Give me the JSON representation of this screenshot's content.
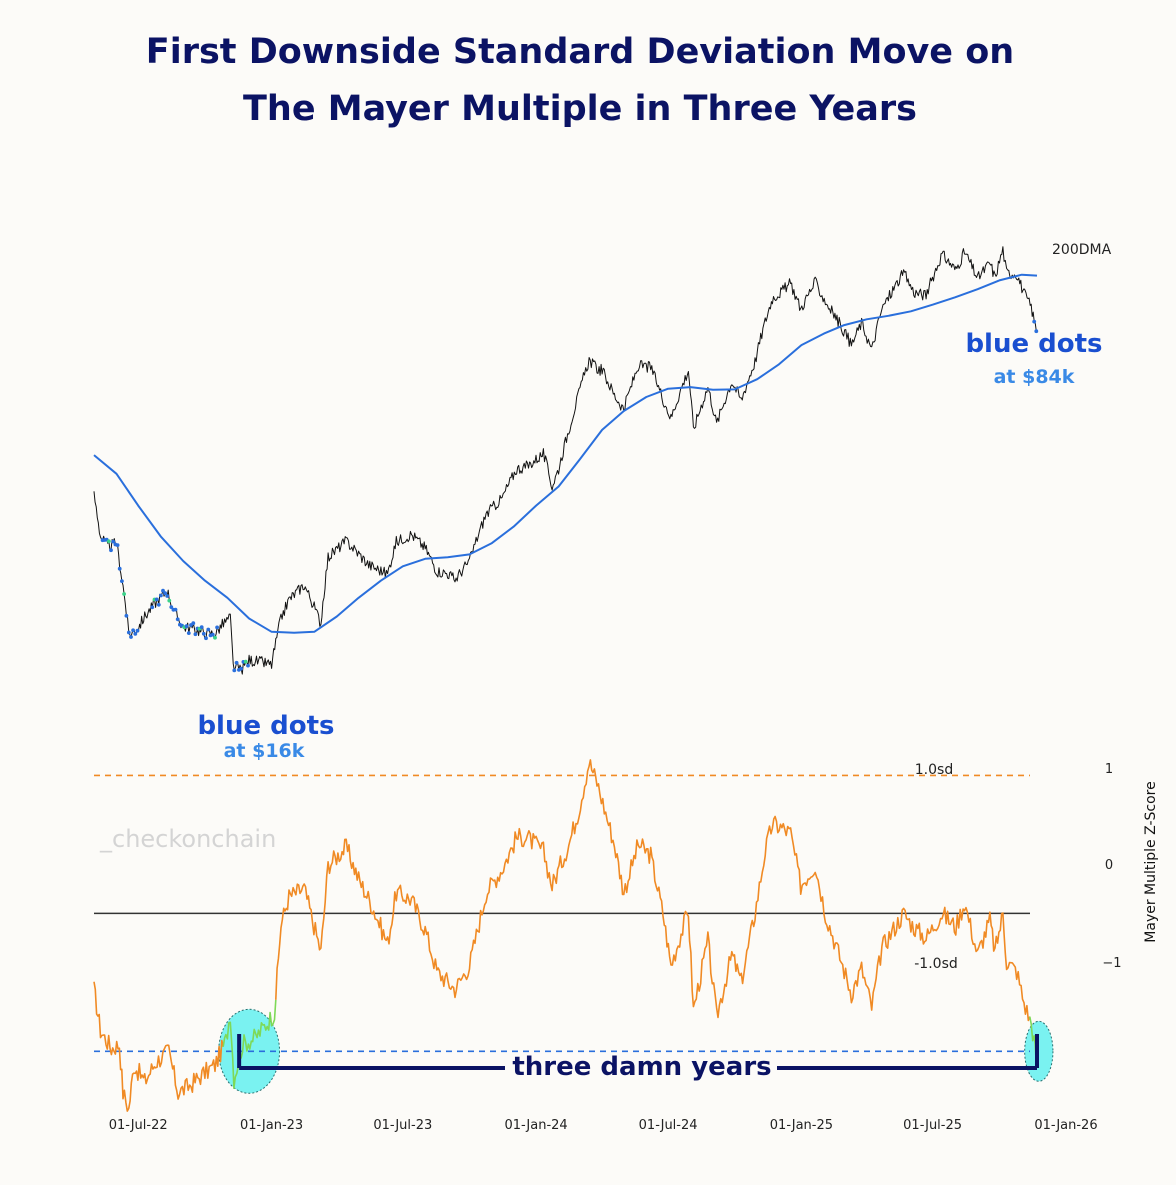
{
  "chart_data": {
    "type": "line",
    "title": [
      "First Downside Standard Deviation Move on",
      "The Mayer Multiple in Three Years"
    ],
    "x_range": [
      "2022-05-01",
      "2025-11-22"
    ],
    "x_ticks": [
      "01-Jul-22",
      "01-Jan-23",
      "01-Jul-23",
      "01-Jan-24",
      "01-Jul-24",
      "01-Jan-25",
      "01-Jul-25",
      "01-Jan-26"
    ],
    "x_tick_dates": [
      "2022-07-01",
      "2023-01-01",
      "2023-07-01",
      "2024-01-01",
      "2024-07-01",
      "2025-01-01",
      "2025-07-01",
      "2026-01-01"
    ],
    "price_panel": {
      "scale": "log",
      "ylim": [
        14000,
        140000
      ],
      "series": [
        {
          "name": "price",
          "color": "#111111",
          "points": [
            [
              "2022-05-01",
              38000
            ],
            [
              "2022-05-10",
              31000
            ],
            [
              "2022-05-20",
              29500
            ],
            [
              "2022-06-01",
              30000
            ],
            [
              "2022-06-13",
              22500
            ],
            [
              "2022-06-18",
              19200
            ],
            [
              "2022-06-30",
              19800
            ],
            [
              "2022-07-10",
              21000
            ],
            [
              "2022-07-25",
              22500
            ],
            [
              "2022-08-10",
              23800
            ],
            [
              "2022-08-20",
              21400
            ],
            [
              "2022-09-01",
              20000
            ],
            [
              "2022-09-15",
              19800
            ],
            [
              "2022-10-01",
              19400
            ],
            [
              "2022-10-15",
              19300
            ],
            [
              "2022-10-25",
              20200
            ],
            [
              "2022-11-05",
              20900
            ],
            [
              "2022-11-09",
              16500
            ],
            [
              "2022-11-20",
              16200
            ],
            [
              "2022-12-01",
              17000
            ],
            [
              "2022-12-20",
              16800
            ],
            [
              "2023-01-01",
              16600
            ],
            [
              "2023-01-14",
              20800
            ],
            [
              "2023-01-25",
              22800
            ],
            [
              "2023-02-15",
              24500
            ],
            [
              "2023-03-10",
              20300
            ],
            [
              "2023-03-20",
              28000
            ],
            [
              "2023-04-14",
              30300
            ],
            [
              "2023-05-01",
              28500
            ],
            [
              "2023-05-15",
              27000
            ],
            [
              "2023-06-10",
              25800
            ],
            [
              "2023-06-22",
              30200
            ],
            [
              "2023-07-13",
              31300
            ],
            [
              "2023-08-01",
              29300
            ],
            [
              "2023-08-17",
              26200
            ],
            [
              "2023-09-01",
              25900
            ],
            [
              "2023-09-11",
              25100
            ],
            [
              "2023-10-01",
              27500
            ],
            [
              "2023-10-24",
              34500
            ],
            [
              "2023-11-15",
              37300
            ],
            [
              "2023-12-05",
              43000
            ],
            [
              "2023-12-20",
              43600
            ],
            [
              "2024-01-11",
              46300
            ],
            [
              "2024-01-23",
              39500
            ],
            [
              "2024-02-01",
              43000
            ],
            [
              "2024-02-15",
              52000
            ],
            [
              "2024-02-29",
              62000
            ],
            [
              "2024-03-14",
              73000
            ],
            [
              "2024-03-25",
              70000
            ],
            [
              "2024-04-01",
              69500
            ],
            [
              "2024-04-18",
              61500
            ],
            [
              "2024-05-01",
              57500
            ],
            [
              "2024-05-21",
              71000
            ],
            [
              "2024-06-07",
              70500
            ],
            [
              "2024-06-24",
              60500
            ],
            [
              "2024-07-05",
              55000
            ],
            [
              "2024-07-29",
              69500
            ],
            [
              "2024-08-05",
              52000
            ],
            [
              "2024-08-25",
              64000
            ],
            [
              "2024-09-06",
              53500
            ],
            [
              "2024-09-27",
              65800
            ],
            [
              "2024-10-10",
              60000
            ],
            [
              "2024-10-29",
              72500
            ],
            [
              "2024-11-12",
              88000
            ],
            [
              "2024-11-22",
              98500
            ],
            [
              "2024-12-05",
              102000
            ],
            [
              "2024-12-17",
              106000
            ],
            [
              "2024-12-31",
              93500
            ],
            [
              "2025-01-20",
              106500
            ],
            [
              "2025-02-03",
              97000
            ],
            [
              "2025-02-25",
              86000
            ],
            [
              "2025-03-11",
              78500
            ],
            [
              "2025-03-25",
              87500
            ],
            [
              "2025-04-08",
              76500
            ],
            [
              "2025-04-22",
              93500
            ],
            [
              "2025-05-22",
              111500
            ],
            [
              "2025-06-05",
              101500
            ],
            [
              "2025-06-22",
              100000
            ],
            [
              "2025-07-14",
              122000
            ],
            [
              "2025-08-02",
              113000
            ],
            [
              "2025-08-14",
              123500
            ],
            [
              "2025-09-01",
              108500
            ],
            [
              "2025-09-18",
              117000
            ],
            [
              "2025-09-25",
              109000
            ],
            [
              "2025-10-06",
              125000
            ],
            [
              "2025-10-11",
              111500
            ],
            [
              "2025-10-25",
              111000
            ],
            [
              "2025-11-04",
              101000
            ],
            [
              "2025-11-14",
              94500
            ],
            [
              "2025-11-21",
              84000
            ]
          ]
        },
        {
          "name": "200DMA",
          "color": "#2a6fdc",
          "points": [
            [
              "2022-05-01",
              46000
            ],
            [
              "2022-06-01",
              42000
            ],
            [
              "2022-07-01",
              36000
            ],
            [
              "2022-08-01",
              31000
            ],
            [
              "2022-09-01",
              27500
            ],
            [
              "2022-10-01",
              25000
            ],
            [
              "2022-11-01",
              23000
            ],
            [
              "2022-12-01",
              20800
            ],
            [
              "2023-01-01",
              19500
            ],
            [
              "2023-02-01",
              19400
            ],
            [
              "2023-03-01",
              19500
            ],
            [
              "2023-04-01",
              21000
            ],
            [
              "2023-05-01",
              23000
            ],
            [
              "2023-06-01",
              25000
            ],
            [
              "2023-07-01",
              26800
            ],
            [
              "2023-08-01",
              27800
            ],
            [
              "2023-09-01",
              28000
            ],
            [
              "2023-10-01",
              28400
            ],
            [
              "2023-11-01",
              30000
            ],
            [
              "2023-12-01",
              32500
            ],
            [
              "2024-01-01",
              36000
            ],
            [
              "2024-02-01",
              39500
            ],
            [
              "2024-03-01",
              45000
            ],
            [
              "2024-04-01",
              52000
            ],
            [
              "2024-05-01",
              57000
            ],
            [
              "2024-06-01",
              61000
            ],
            [
              "2024-07-01",
              63500
            ],
            [
              "2024-08-01",
              64000
            ],
            [
              "2024-09-01",
              63200
            ],
            [
              "2024-10-01",
              63300
            ],
            [
              "2024-11-01",
              66500
            ],
            [
              "2024-12-01",
              71500
            ],
            [
              "2025-01-01",
              78500
            ],
            [
              "2025-02-01",
              83000
            ],
            [
              "2025-03-01",
              86500
            ],
            [
              "2025-04-01",
              89000
            ],
            [
              "2025-05-01",
              90500
            ],
            [
              "2025-06-01",
              92500
            ],
            [
              "2025-07-01",
              95500
            ],
            [
              "2025-08-01",
              99000
            ],
            [
              "2025-09-01",
              103000
            ],
            [
              "2025-10-01",
              107500
            ],
            [
              "2025-11-01",
              110500
            ],
            [
              "2025-11-22",
              110000
            ]
          ]
        }
      ],
      "series_label": "200DMA",
      "blue_dot_spans": [
        [
          "2022-05-12",
          "2022-06-30"
        ],
        [
          "2022-07-20",
          "2022-10-20"
        ],
        [
          "2022-11-10",
          "2022-11-30"
        ],
        [
          "2025-11-18",
          "2025-11-22"
        ]
      ],
      "annotations": [
        {
          "text": "blue dots",
          "sub": "at $16k"
        },
        {
          "text": "blue dots",
          "sub": "at $84k"
        }
      ]
    },
    "zscore_panel": {
      "ylabel": "Mayer Multiple Z-Score",
      "ylim": [
        -1.23,
        1.17
      ],
      "y_ticks": [
        "1",
        "0",
        "−1"
      ],
      "y_tick_values": [
        1,
        0,
        -1
      ],
      "lines": [
        {
          "label": "1.0sd",
          "value": 1.0,
          "color": "#f08a24",
          "style": "dashed"
        },
        {
          "label": "",
          "value": 0.0,
          "color": "#333333",
          "style": "solid"
        },
        {
          "label": "-1.0sd",
          "value": -1.0,
          "color": "#2a6fdc",
          "style": "dashed"
        }
      ],
      "series": {
        "name": "Mayer Multiple Z-Score",
        "color": "#f08a24",
        "low_color": "#7ed957",
        "points": [
          [
            "2022-05-01",
            -0.55
          ],
          [
            "2022-05-10",
            -0.85
          ],
          [
            "2022-05-25",
            -0.98
          ],
          [
            "2022-06-05",
            -0.95
          ],
          [
            "2022-06-10",
            -1.3
          ],
          [
            "2022-06-18",
            -1.42
          ],
          [
            "2022-06-25",
            -1.1
          ],
          [
            "2022-07-10",
            -1.22
          ],
          [
            "2022-07-25",
            -1.08
          ],
          [
            "2022-08-12",
            -1.0
          ],
          [
            "2022-08-25",
            -1.3
          ],
          [
            "2022-09-10",
            -1.25
          ],
          [
            "2022-09-25",
            -1.18
          ],
          [
            "2022-10-15",
            -1.1
          ],
          [
            "2022-10-30",
            -0.92
          ],
          [
            "2022-11-05",
            -0.72
          ],
          [
            "2022-11-10",
            -1.2
          ],
          [
            "2022-11-22",
            -0.95
          ],
          [
            "2022-12-10",
            -0.9
          ],
          [
            "2022-12-28",
            -0.78
          ],
          [
            "2023-01-05",
            -0.72
          ],
          [
            "2023-01-14",
            -0.08
          ],
          [
            "2023-01-25",
            0.12
          ],
          [
            "2023-02-15",
            0.18
          ],
          [
            "2023-03-10",
            -0.28
          ],
          [
            "2023-03-20",
            0.35
          ],
          [
            "2023-04-14",
            0.48
          ],
          [
            "2023-05-01",
            0.25
          ],
          [
            "2023-05-20",
            0.05
          ],
          [
            "2023-06-10",
            -0.22
          ],
          [
            "2023-06-22",
            0.15
          ],
          [
            "2023-07-13",
            0.1
          ],
          [
            "2023-08-01",
            -0.12
          ],
          [
            "2023-08-17",
            -0.42
          ],
          [
            "2023-09-11",
            -0.55
          ],
          [
            "2023-10-01",
            -0.38
          ],
          [
            "2023-10-24",
            0.15
          ],
          [
            "2023-11-15",
            0.32
          ],
          [
            "2023-12-05",
            0.55
          ],
          [
            "2023-12-20",
            0.55
          ],
          [
            "2024-01-11",
            0.45
          ],
          [
            "2024-01-23",
            0.2
          ],
          [
            "2024-02-15",
            0.5
          ],
          [
            "2024-02-29",
            0.75
          ],
          [
            "2024-03-14",
            1.1
          ],
          [
            "2024-03-25",
            0.95
          ],
          [
            "2024-04-18",
            0.5
          ],
          [
            "2024-05-01",
            0.15
          ],
          [
            "2024-05-21",
            0.5
          ],
          [
            "2024-06-07",
            0.42
          ],
          [
            "2024-06-24",
            0.0
          ],
          [
            "2024-07-05",
            -0.38
          ],
          [
            "2024-07-29",
            0.02
          ],
          [
            "2024-08-05",
            -0.7
          ],
          [
            "2024-08-25",
            -0.2
          ],
          [
            "2024-09-06",
            -0.75
          ],
          [
            "2024-09-27",
            -0.3
          ],
          [
            "2024-10-10",
            -0.5
          ],
          [
            "2024-10-29",
            0.0
          ],
          [
            "2024-11-12",
            0.45
          ],
          [
            "2024-11-22",
            0.65
          ],
          [
            "2024-12-05",
            0.62
          ],
          [
            "2024-12-17",
            0.58
          ],
          [
            "2024-12-31",
            0.2
          ],
          [
            "2025-01-20",
            0.35
          ],
          [
            "2025-02-03",
            0.0
          ],
          [
            "2025-02-25",
            -0.35
          ],
          [
            "2025-03-11",
            -0.58
          ],
          [
            "2025-03-25",
            -0.4
          ],
          [
            "2025-04-08",
            -0.68
          ],
          [
            "2025-04-22",
            -0.25
          ],
          [
            "2025-05-22",
            0.0
          ],
          [
            "2025-06-05",
            -0.1
          ],
          [
            "2025-06-22",
            -0.18
          ],
          [
            "2025-07-14",
            0.0
          ],
          [
            "2025-08-02",
            -0.1
          ],
          [
            "2025-08-14",
            0.08
          ],
          [
            "2025-09-01",
            -0.3
          ],
          [
            "2025-09-18",
            -0.05
          ],
          [
            "2025-09-25",
            -0.28
          ],
          [
            "2025-10-06",
            0.0
          ],
          [
            "2025-10-11",
            -0.35
          ],
          [
            "2025-10-25",
            -0.42
          ],
          [
            "2025-11-04",
            -0.65
          ],
          [
            "2025-11-14",
            -0.8
          ],
          [
            "2025-11-18",
            -0.92
          ],
          [
            "2025-11-21",
            -1.08
          ],
          [
            "2025-11-22",
            -1.0
          ]
        ]
      },
      "highlights": [
        [
          "2022-10-20",
          "2023-01-12"
        ],
        [
          "2025-11-05",
          "2025-12-14"
        ]
      ],
      "bracket": {
        "from": "2022-11-20",
        "to": "2025-11-22",
        "label": "three damn years"
      }
    },
    "watermark": "_checkonchain",
    "grid": false,
    "legend": "none"
  }
}
